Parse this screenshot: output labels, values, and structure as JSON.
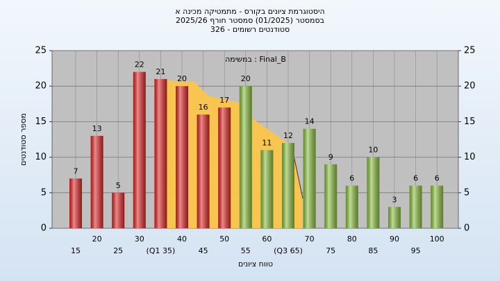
{
  "chart_data": {
    "type": "bar",
    "title": [
      "היסטוגרמת ציונים בקורס - מתמטיקה מכינה א",
      "בסמסטר  (01/2025)  סמסטר חורף 2025/26",
      "סטודנטים רשומים - 326"
    ],
    "annotation": "במשימה : Final_B",
    "x_label": "טווח ציונים",
    "y_label": "מספר סטודנטים",
    "categories": [
      "15",
      "20",
      "25",
      "30",
      "(Q1 35)",
      "40",
      "45",
      "50",
      "55",
      "60",
      "(Q3 65)",
      "70",
      "75",
      "80",
      "85",
      "90",
      "95",
      "100"
    ],
    "values": [
      7,
      13,
      5,
      22,
      21,
      20,
      16,
      17,
      20,
      11,
      12,
      14,
      9,
      6,
      10,
      3,
      6,
      6
    ],
    "colors": [
      "#e02828",
      "#e02828",
      "#e02828",
      "#e02828",
      "#e02828",
      "#e02828",
      "#e02828",
      "#e02828",
      "#8cbf3f",
      "#8cbf3f",
      "#8cbf3f",
      "#8cbf3f",
      "#8cbf3f",
      "#8cbf3f",
      "#8cbf3f",
      "#8cbf3f",
      "#8cbf3f",
      "#8cbf3f"
    ],
    "ylim": [
      0,
      25
    ],
    "yticks": [
      0,
      5,
      10,
      15,
      20,
      25
    ],
    "grid": true
  }
}
